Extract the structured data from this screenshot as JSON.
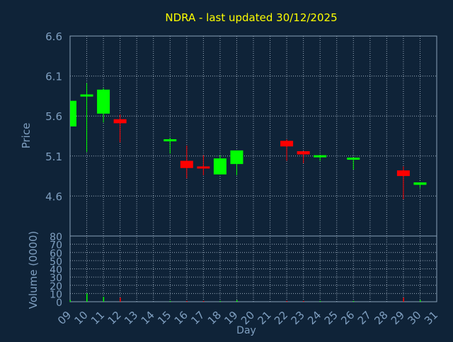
{
  "chart_data": [
    {
      "type": "candlestick",
      "title": "NDRA - last updated 30/12/2025",
      "ylabel": "Price",
      "xlabel": "Day",
      "ylim": [
        4.1,
        6.6
      ],
      "yticks": [
        "6.6",
        "6.1",
        "5.6",
        "5.1",
        "4.6"
      ],
      "yticks_values": [
        6.6,
        6.1,
        5.6,
        5.1,
        4.6
      ],
      "xticks": [
        "09",
        "10",
        "11",
        "12",
        "13",
        "14",
        "15",
        "16",
        "17",
        "18",
        "19",
        "20",
        "21",
        "22",
        "23",
        "24",
        "25",
        "26",
        "27",
        "28",
        "29",
        "30",
        "31"
      ],
      "grid": true,
      "up_color": "#00ff00",
      "down_color": "#ff0000",
      "candles": [
        {
          "day": 9,
          "open": 5.47,
          "high": 5.79,
          "low": 5.47,
          "close": 5.79
        },
        {
          "day": 10,
          "open": 5.85,
          "high": 6.01,
          "low": 5.15,
          "close": 5.87
        },
        {
          "day": 11,
          "open": 5.63,
          "high": 5.95,
          "low": 5.52,
          "close": 5.93
        },
        {
          "day": 12,
          "open": 5.56,
          "high": 5.62,
          "low": 5.27,
          "close": 5.51
        },
        {
          "day": 15,
          "open": 5.3,
          "high": 5.33,
          "low": 5.13,
          "close": 5.31
        },
        {
          "day": 16,
          "open": 5.04,
          "high": 5.23,
          "low": 4.82,
          "close": 4.95
        },
        {
          "day": 17,
          "open": 4.97,
          "high": 5.11,
          "low": 4.86,
          "close": 4.95
        },
        {
          "day": 18,
          "open": 4.87,
          "high": 5.11,
          "low": 4.87,
          "close": 5.07
        },
        {
          "day": 19,
          "open": 5.0,
          "high": 5.17,
          "low": 4.86,
          "close": 5.17
        },
        {
          "day": 22,
          "open": 5.29,
          "high": 5.31,
          "low": 5.04,
          "close": 5.22
        },
        {
          "day": 23,
          "open": 5.16,
          "high": 5.16,
          "low": 5.01,
          "close": 5.12
        },
        {
          "day": 24,
          "open": 5.09,
          "high": 5.11,
          "low": 5.04,
          "close": 5.11
        },
        {
          "day": 26,
          "open": 5.06,
          "high": 5.08,
          "low": 4.93,
          "close": 5.08
        },
        {
          "day": 29,
          "open": 4.92,
          "high": 4.97,
          "low": 4.56,
          "close": 4.85
        },
        {
          "day": 30,
          "open": 4.74,
          "high": 4.77,
          "low": 4.7,
          "close": 4.77
        }
      ]
    },
    {
      "type": "bar",
      "ylabel": "Volume (0000)",
      "xlabel": "Day",
      "ylim": [
        0,
        80
      ],
      "yticks": [
        "80",
        "70",
        "60",
        "50",
        "40",
        "30",
        "20",
        "10",
        "0"
      ],
      "yticks_values": [
        80,
        70,
        60,
        50,
        40,
        30,
        20,
        10,
        0
      ],
      "xticks": [
        "09",
        "10",
        "11",
        "12",
        "13",
        "14",
        "15",
        "16",
        "17",
        "18",
        "19",
        "20",
        "21",
        "22",
        "23",
        "24",
        "25",
        "26",
        "27",
        "28",
        "29",
        "30",
        "31"
      ],
      "grid": true,
      "values": [
        {
          "day": 9,
          "volume": 2,
          "color": "#00ff00"
        },
        {
          "day": 10,
          "volume": 10,
          "color": "#00ff00"
        },
        {
          "day": 11,
          "volume": 6,
          "color": "#00ff00"
        },
        {
          "day": 12,
          "volume": 5,
          "color": "#ff0000"
        },
        {
          "day": 15,
          "volume": 1,
          "color": "#00ff00"
        },
        {
          "day": 16,
          "volume": 1,
          "color": "#ff0000"
        },
        {
          "day": 17,
          "volume": 1,
          "color": "#ff0000"
        },
        {
          "day": 18,
          "volume": 1,
          "color": "#00ff00"
        },
        {
          "day": 19,
          "volume": 2,
          "color": "#00ff00"
        },
        {
          "day": 22,
          "volume": 1,
          "color": "#ff0000"
        },
        {
          "day": 23,
          "volume": 1,
          "color": "#ff0000"
        },
        {
          "day": 24,
          "volume": 1,
          "color": "#00ff00"
        },
        {
          "day": 26,
          "volume": 1,
          "color": "#00ff00"
        },
        {
          "day": 29,
          "volume": 5,
          "color": "#ff0000"
        },
        {
          "day": 30,
          "volume": 2,
          "color": "#00ff00"
        }
      ]
    }
  ],
  "colors": {
    "background": "#0f2338",
    "title": "#ffff00",
    "axis_text": "#7f9fc0",
    "axis_line": "#8aa0b8",
    "grid": "#9aaabb"
  }
}
